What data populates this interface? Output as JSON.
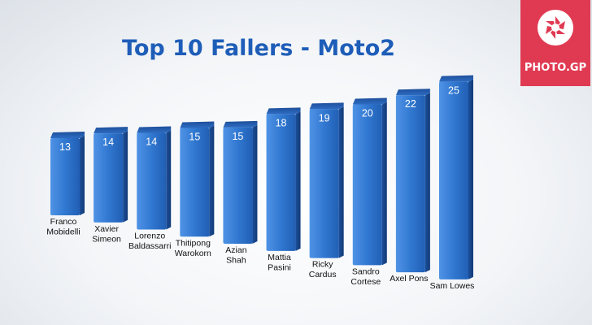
{
  "logo": {
    "text": "PHOTO.GP",
    "color": "#e03a52"
  },
  "chart_data": {
    "type": "bar",
    "title": "Top 10 Fallers - Moto2",
    "categories": [
      [
        "Franco",
        "Mobidelli"
      ],
      [
        "Xavier",
        "Simeon"
      ],
      [
        "Lorenzo",
        "Baldassarri"
      ],
      [
        "Thitipong",
        "Warokorn"
      ],
      [
        "Azian",
        "Shah"
      ],
      [
        "Mattia",
        "Pasini"
      ],
      [
        "Ricky",
        "Cardus"
      ],
      [
        "Sandro",
        "Cortese"
      ],
      [
        "Axel Pons"
      ],
      [
        "Sam Lowes"
      ]
    ],
    "values": [
      13,
      14,
      14,
      15,
      15,
      18,
      19,
      20,
      22,
      25
    ],
    "data_labels": true,
    "xlabel": "",
    "ylabel": "",
    "grid": false,
    "bar_color": "#2f78d0"
  }
}
